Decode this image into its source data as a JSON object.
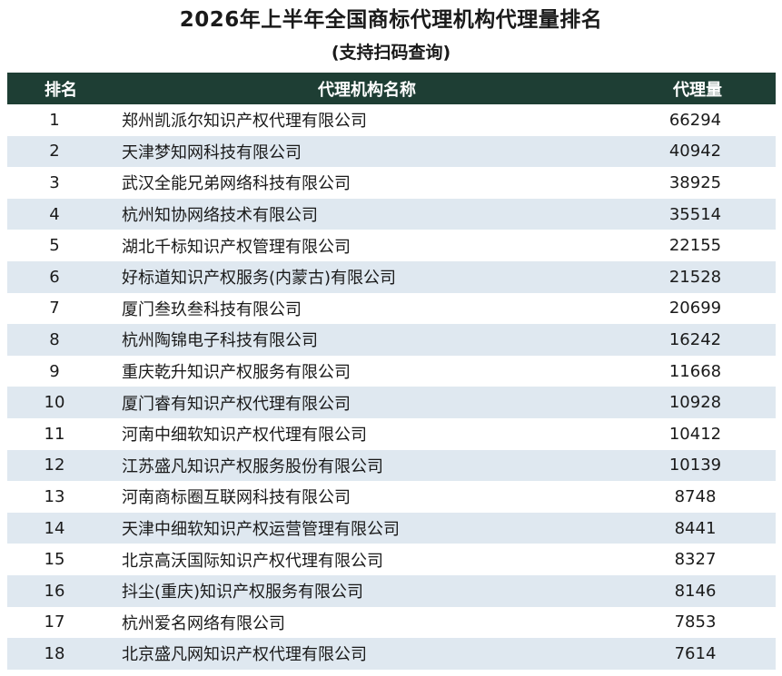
{
  "title": "2026年上半年全国商标代理机构代理量排名",
  "subtitle": "(支持扫码查询)",
  "table": {
    "headers": [
      "排名",
      "代理机构名称",
      "代理量"
    ],
    "rows": [
      {
        "rank": "1",
        "name": "郑州凯派尔知识产权代理有限公司",
        "count": "66294"
      },
      {
        "rank": "2",
        "name": "天津梦知网科技有限公司",
        "count": "40942"
      },
      {
        "rank": "3",
        "name": "武汉全能兄弟网络科技有限公司",
        "count": "38925"
      },
      {
        "rank": "4",
        "name": "杭州知协网络技术有限公司",
        "count": "35514"
      },
      {
        "rank": "5",
        "name": "湖北千标知识产权管理有限公司",
        "count": "22155"
      },
      {
        "rank": "6",
        "name": "好标道知识产权服务(内蒙古)有限公司",
        "count": "21528"
      },
      {
        "rank": "7",
        "name": "厦门叁玖叁科技有限公司",
        "count": "20699"
      },
      {
        "rank": "8",
        "name": "杭州陶锦电子科技有限公司",
        "count": "16242"
      },
      {
        "rank": "9",
        "name": "重庆乾升知识产权服务有限公司",
        "count": "11668"
      },
      {
        "rank": "10",
        "name": "厦门睿有知识产权代理有限公司",
        "count": "10928"
      },
      {
        "rank": "11",
        "name": "河南中细软知识产权代理有限公司",
        "count": "10412"
      },
      {
        "rank": "12",
        "name": "江苏盛凡知识产权服务股份有限公司",
        "count": "10139"
      },
      {
        "rank": "13",
        "name": "河南商标圈互联网科技有限公司",
        "count": "8748"
      },
      {
        "rank": "14",
        "name": "天津中细软知识产权运营管理有限公司",
        "count": "8441"
      },
      {
        "rank": "15",
        "name": "北京高沃国际知识产权代理有限公司",
        "count": "8327"
      },
      {
        "rank": "16",
        "name": "抖尘(重庆)知识产权服务有限公司",
        "count": "8146"
      },
      {
        "rank": "17",
        "name": "杭州爱名网络有限公司",
        "count": "7853"
      },
      {
        "rank": "18",
        "name": "北京盛凡网知识产权代理有限公司",
        "count": "7614"
      }
    ]
  },
  "colors": {
    "header_bg": "#1e3e34",
    "stripe_bg": "#dfe8f0"
  }
}
